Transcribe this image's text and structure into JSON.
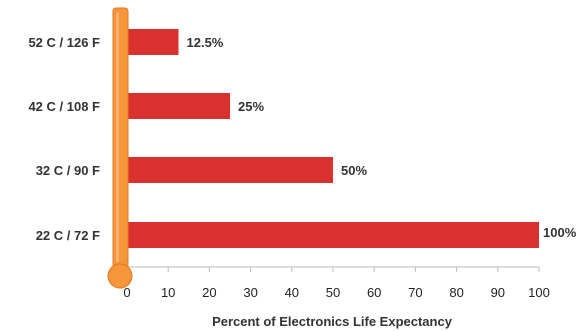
{
  "chart_data": {
    "type": "bar",
    "orientation": "horizontal",
    "title": "",
    "xlabel": "Percent of Electronics Life Expectancy",
    "ylabel": "",
    "categories": [
      "52 C / 126 F",
      "42 C / 108 F",
      "32 C / 90 F",
      "22 C / 72 F"
    ],
    "values": [
      12.5,
      25,
      50,
      100
    ],
    "data_labels": [
      "12.5%",
      "25%",
      "50%",
      "100%"
    ],
    "xlim": [
      0,
      100
    ],
    "xticks": [
      0,
      10,
      20,
      30,
      40,
      50,
      60,
      70,
      80,
      90,
      100
    ],
    "xtick_labels": [
      "0",
      "10",
      "20",
      "30",
      "40",
      "50",
      "60",
      "70",
      "80",
      "90",
      "100"
    ],
    "grid": false,
    "legend": "none",
    "colors": {
      "bar": "#d9322e",
      "thermometer": "#f5963d",
      "thermometer_edge": "#e07b22",
      "axis": "#bbbbbb",
      "text": "#333333"
    },
    "decoration": "thermometer-icon"
  }
}
